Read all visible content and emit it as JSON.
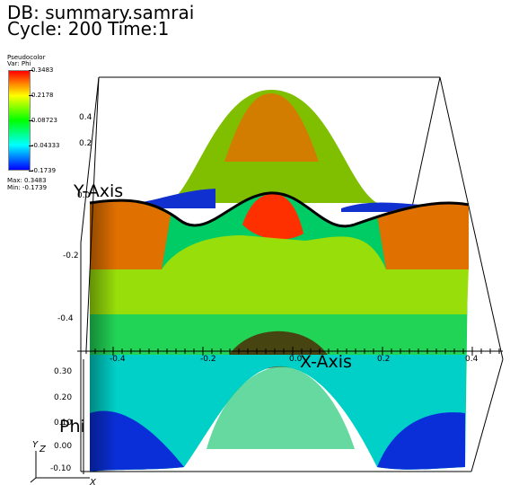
{
  "header": {
    "db_line": "DB: summary.samrai",
    "cycle_line": "Cycle: 200",
    "time_line": "Time:1"
  },
  "legend": {
    "type_label": "Pseudocolor",
    "var_label": "Var: Phi",
    "ticks": [
      "0.3483",
      "0.2178",
      "0.08723",
      "-0.04333",
      "-0.1739"
    ],
    "max_label": "Max:  0.3483",
    "min_label": "Min: -0.1739",
    "colormap": [
      "#0000ff",
      "#00ffff",
      "#00ff00",
      "#ffff00",
      "#ff0000"
    ]
  },
  "axes": {
    "x_title": "X-Axis",
    "y_title": "Y-Axis",
    "z_title": "Phi",
    "x_ticks": [
      "-0.4",
      "-0.2",
      "0.0",
      "0.2",
      "0.4"
    ],
    "y_ticks": [
      "0.4",
      "0.2",
      "0.0",
      "-0.2",
      "-0.4"
    ],
    "z_ticks": [
      "0.30",
      "0.20",
      "0.10",
      "0.00",
      "-0.10"
    ]
  },
  "triad": {
    "x": "X",
    "y": "Y",
    "z": "Z"
  }
}
